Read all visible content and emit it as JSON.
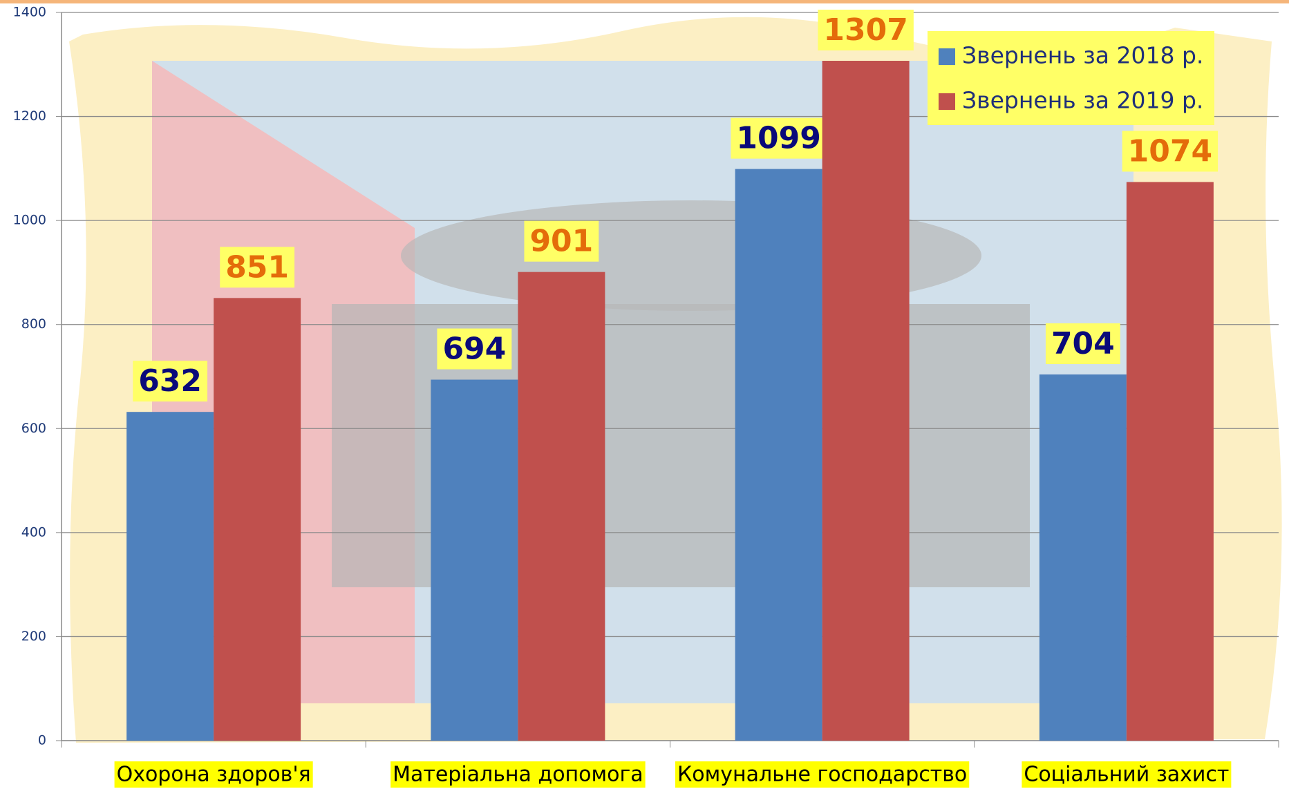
{
  "chart_data": {
    "type": "bar",
    "categories": [
      "Охорона здоров'я",
      "Матеріальна допомога",
      "Комунальне господарство",
      "Соціальний захист"
    ],
    "series": [
      {
        "name": "Звернень за 2018 р.",
        "color": "#4f81bd",
        "label_color": "#0a0a7a",
        "values": [
          632,
          694,
          1099,
          704
        ]
      },
      {
        "name": "Звернень за 2019 р.",
        "color": "#c0504d",
        "label_color": "#e46c0a",
        "values": [
          851,
          901,
          1307,
          1074
        ]
      }
    ],
    "ylim": [
      0,
      1400
    ],
    "yticks": [
      0,
      200,
      400,
      600,
      800,
      1000,
      1200,
      1400
    ],
    "grid": true,
    "legend": "top-right"
  }
}
